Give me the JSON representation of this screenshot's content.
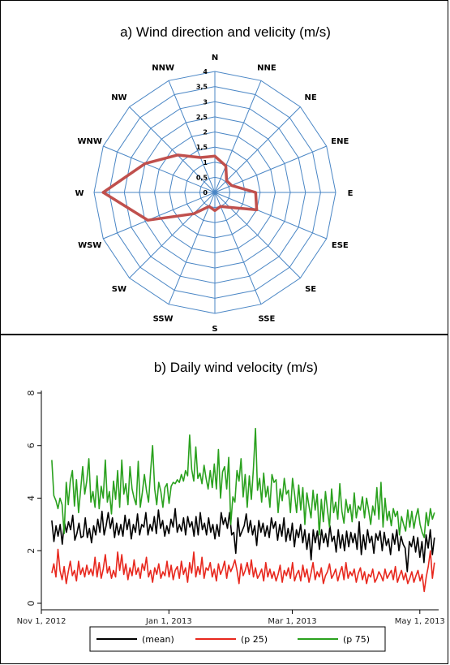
{
  "chart_data": [
    {
      "type": "radar",
      "title": "a)   Wind direction and velicity (m/s)",
      "directions": [
        "N",
        "NNE",
        "NE",
        "ENE",
        "E",
        "ESE",
        "SE",
        "SSE",
        "S",
        "SSW",
        "SW",
        "WSW",
        "W",
        "WNW",
        "NW",
        "NNW"
      ],
      "radial_ticks": [
        "0",
        "0,5",
        "1",
        "1,5",
        "2",
        "2,5",
        "3",
        "3,5",
        "4"
      ],
      "rlim": [
        0,
        4
      ],
      "values": [
        1.2,
        0.95,
        0.55,
        0.6,
        1.35,
        1.5,
        0.7,
        0.5,
        0.6,
        0.5,
        1.0,
        2.4,
        3.7,
        2.5,
        1.75,
        1.25
      ],
      "grid": true,
      "colors": {
        "grid": "#4a86c5",
        "series": "#c0504d"
      }
    },
    {
      "type": "line",
      "title": "b)   Daily wind velocity  (m/s)",
      "xlabel": "",
      "ylabel": "",
      "ylim": [
        0,
        8
      ],
      "y_ticks": [
        "0",
        "2",
        "4",
        "6",
        "8"
      ],
      "x_ticks": [
        "Nov 1, 2012",
        "Jan 1, 2013",
        "Mar 1, 2013",
        "May 1, 2013"
      ],
      "x_start": "Nov 1, 2012",
      "x_end": "May 10, 2013",
      "legend": {
        "position": "bottom"
      },
      "series": [
        {
          "name": "(mean)",
          "color": "#000000",
          "values": [
            3.15,
            2.35,
            2.95,
            2.55,
            3.0,
            2.25,
            3.1,
            2.7,
            3.1,
            2.8,
            3.35,
            2.4,
            2.65,
            3.05,
            2.5,
            2.55,
            3.25,
            2.5,
            2.85,
            2.3,
            2.95,
            2.6,
            3.2,
            2.7,
            3.5,
            2.6,
            2.95,
            3.45,
            2.85,
            3.25,
            2.5,
            3.05,
            2.6,
            3.0,
            2.55,
            3.35,
            2.8,
            3.2,
            2.45,
            3.0,
            2.7,
            3.4,
            2.6,
            3.0,
            2.9,
            3.45,
            2.6,
            3.0,
            2.75,
            3.3,
            2.65,
            3.55,
            2.85,
            3.15,
            2.55,
            2.95,
            2.65,
            3.2,
            2.9,
            3.6,
            2.7,
            3.0,
            2.75,
            3.25,
            2.6,
            3.3,
            2.9,
            3.1,
            2.55,
            3.3,
            2.6,
            3.45,
            2.8,
            3.05,
            2.6,
            3.25,
            2.7,
            3.0,
            2.45,
            3.0,
            2.55,
            3.45,
            3.0,
            3.25,
            2.85,
            3.45,
            2.6,
            2.7,
            1.9,
            3.25,
            2.55,
            2.75,
            2.95,
            3.4,
            2.7,
            3.15,
            2.6,
            2.95,
            2.2,
            3.15,
            2.7,
            3.05,
            2.55,
            2.95,
            2.5,
            3.25,
            2.85,
            3.1,
            2.4,
            3.0,
            2.55,
            3.25,
            2.35,
            2.85,
            2.4,
            3.05,
            2.15,
            2.8,
            2.5,
            3.0,
            2.3,
            2.8,
            2.05,
            2.65,
            1.65,
            2.8,
            2.3,
            2.75,
            2.05,
            2.8,
            2.3,
            2.65,
            2.15,
            2.95,
            2.35,
            2.55,
            1.95,
            2.8,
            2.1,
            2.6,
            2.0,
            2.75,
            2.15,
            2.7,
            2.3,
            2.65,
            2.05,
            3.1,
            1.85,
            2.6,
            2.05,
            2.8,
            2.3,
            2.55,
            1.9,
            2.65,
            2.4,
            2.75,
            2.0,
            2.7,
            2.2,
            2.45,
            1.85,
            2.65,
            2.25,
            2.8,
            2.0,
            2.55,
            2.25,
            2.1,
            1.2,
            2.35,
            2.15,
            2.55,
            1.95,
            2.5,
            1.75,
            2.35,
            1.55,
            2.6,
            2.1,
            2.8,
            1.85,
            2.5
          ]
        },
        {
          "name": "(p 25)",
          "color": "#e8281e",
          "values": [
            1.15,
            1.5,
            1.0,
            2.05,
            1.25,
            0.9,
            1.4,
            0.75,
            1.2,
            1.6,
            1.05,
            1.25,
            0.85,
            1.6,
            1.1,
            1.35,
            1.0,
            1.45,
            1.1,
            1.3,
            1.05,
            1.75,
            1.0,
            1.55,
            0.95,
            1.3,
            1.85,
            1.15,
            1.4,
            0.95,
            1.25,
            1.0,
            1.95,
            1.25,
            1.85,
            1.1,
            1.5,
            0.9,
            1.35,
            1.05,
            1.65,
            1.1,
            1.35,
            0.95,
            1.5,
            1.25,
            1.75,
            1.0,
            1.25,
            0.8,
            1.35,
            1.1,
            1.5,
            0.95,
            1.2,
            1.05,
            1.6,
            1.0,
            1.45,
            0.9,
            1.25,
            1.4,
            0.95,
            1.6,
            1.1,
            1.35,
            0.8,
            1.55,
            1.15,
            1.95,
            1.0,
            1.4,
            1.1,
            1.75,
            0.95,
            1.35,
            1.25,
            1.55,
            1.0,
            1.3,
            0.85,
            1.5,
            1.1,
            1.3,
            1.6,
            0.95,
            1.45,
            1.2,
            1.4,
            1.65,
            1.25,
            0.75,
            1.5,
            1.05,
            1.25,
            1.55,
            1.1,
            1.65,
            1.0,
            1.35,
            0.95,
            1.1,
            1.3,
            0.85,
            1.55,
            1.0,
            1.3,
            0.95,
            1.2,
            0.85,
            1.1,
            1.45,
            0.8,
            1.25,
            1.05,
            1.35,
            0.95,
            1.55,
            0.85,
            1.1,
            1.25,
            0.85,
            1.45,
            1.0,
            1.3,
            0.8,
            1.15,
            1.55,
            0.9,
            1.2,
            1.0,
            1.35,
            0.75,
            1.05,
            1.2,
            1.5,
            0.95,
            1.1,
            1.3,
            0.85,
            1.15,
            1.4,
            0.9,
            1.55,
            0.95,
            1.2,
            1.05,
            1.3,
            0.8,
            1.15,
            1.35,
            0.9,
            1.2,
            0.75,
            1.1,
            1.0,
            1.3,
            0.8,
            0.95,
            1.2,
            1.05,
            0.85,
            1.3,
            0.95,
            1.1,
            1.25,
            0.9,
            1.4,
            0.8,
            1.05,
            1.25,
            0.9,
            1.15,
            0.75,
            0.95,
            1.2,
            0.8,
            1.05,
            1.25,
            0.85,
            1.1,
            0.45,
            1.0,
            1.4,
            2.0,
            0.95,
            1.55
          ]
        },
        {
          "name": "(p 75)",
          "color": "#2aa11e",
          "values": [
            5.45,
            4.1,
            3.9,
            3.6,
            4.0,
            3.75,
            2.65,
            4.6,
            3.75,
            4.65,
            5.05,
            3.7,
            4.7,
            3.45,
            4.3,
            5.2,
            4.15,
            4.65,
            5.5,
            3.85,
            4.25,
            3.65,
            4.85,
            3.6,
            4.45,
            4.0,
            5.45,
            3.85,
            4.25,
            3.4,
            4.65,
            3.95,
            5.05,
            3.65,
            5.45,
            4.15,
            4.55,
            3.75,
            5.2,
            4.35,
            4.0,
            3.75,
            5.4,
            3.65,
            4.2,
            4.9,
            4.3,
            3.85,
            5.0,
            6.0,
            4.35,
            3.75,
            4.6,
            4.25,
            3.65,
            4.4,
            4.55,
            3.8,
            4.45,
            4.6,
            4.55,
            4.7,
            4.6,
            4.9,
            4.65,
            5.05,
            4.85,
            6.4,
            5.1,
            4.65,
            5.95,
            4.75,
            4.95,
            4.55,
            5.25,
            4.75,
            4.35,
            5.05,
            4.4,
            5.3,
            4.35,
            5.85,
            4.0,
            5.0,
            5.2,
            4.35,
            5.55,
            3.0,
            4.05,
            3.85,
            5.05,
            4.65,
            5.5,
            4.05,
            4.9,
            3.65,
            4.85,
            3.95,
            5.15,
            6.65,
            4.3,
            4.75,
            3.85,
            4.95,
            4.05,
            4.45,
            3.65,
            4.9,
            4.6,
            4.7,
            3.45,
            4.35,
            3.9,
            4.75,
            4.15,
            4.3,
            3.45,
            4.75,
            4.15,
            3.45,
            4.5,
            3.55,
            4.4,
            3.0,
            4.2,
            3.7,
            3.25,
            4.3,
            3.55,
            4.15,
            2.6,
            3.95,
            3.1,
            4.25,
            3.55,
            2.9,
            4.35,
            3.45,
            3.85,
            3.2,
            4.55,
            3.5,
            3.05,
            3.95,
            3.45,
            3.75,
            3.1,
            4.2,
            3.25,
            3.7,
            3.55,
            4.05,
            3.25,
            4.0,
            3.55,
            3.0,
            3.7,
            3.35,
            4.4,
            3.2,
            4.6,
            2.9,
            4.0,
            3.15,
            3.5,
            2.95,
            3.6,
            3.3,
            3.5,
            2.6,
            3.3,
            3.0,
            2.75,
            3.55,
            2.9,
            3.5,
            2.85,
            3.3,
            3.6,
            3.0,
            2.7,
            2.5,
            3.45,
            2.95,
            3.6,
            3.2,
            3.45
          ]
        }
      ]
    }
  ]
}
